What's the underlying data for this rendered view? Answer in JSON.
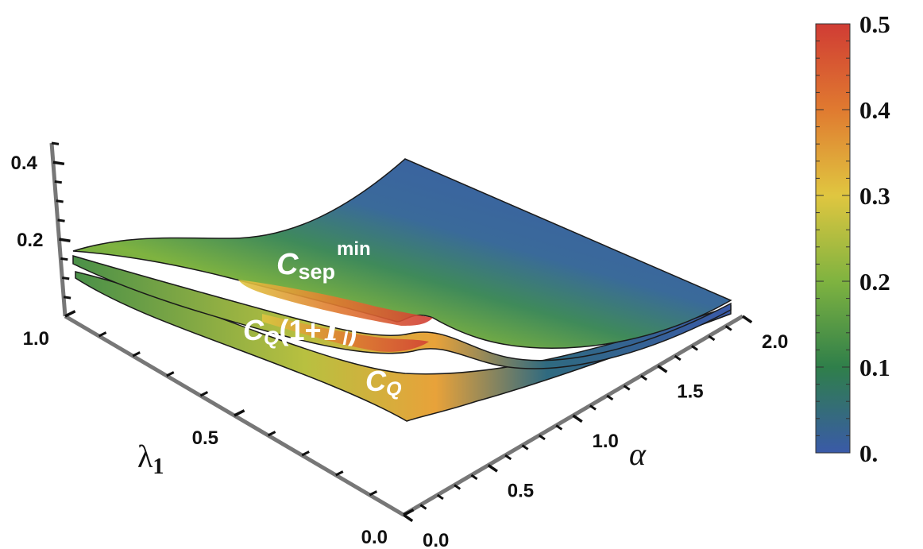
{
  "chart_data": {
    "type": "surface3d",
    "title": "",
    "axes": {
      "alpha": {
        "label": "α",
        "ticks": [
          "0.0",
          "0.5",
          "1.0",
          "1.5",
          "2.0"
        ],
        "range": [
          0,
          2
        ]
      },
      "lambda1": {
        "label": "λ",
        "label_sub": "1",
        "ticks": [
          "0.0",
          "0.5",
          "1.0"
        ],
        "range": [
          0,
          1
        ]
      },
      "z": {
        "ticks": [
          "0.2",
          "0.4"
        ],
        "range": [
          0,
          0.45
        ]
      }
    },
    "colorbar": {
      "ticks": [
        "0.",
        "0.1",
        "0.2",
        "0.3",
        "0.4",
        "0.5"
      ],
      "range": [
        0,
        0.5
      ],
      "colors": [
        "#3a5aa8",
        "#2f7f4a",
        "#7fb340",
        "#e0c640",
        "#e07a30",
        "#d03c34"
      ]
    },
    "series": [
      {
        "name_main": "C",
        "name_sub": "sep",
        "name_sup": "min"
      },
      {
        "name_main": "C",
        "name_sub": "Q",
        "name_tail": "(1+",
        "name_script": "T",
        "name_script_sub": "l",
        "name_close": ")"
      },
      {
        "name_main": "C",
        "name_sub": "Q"
      }
    ]
  }
}
